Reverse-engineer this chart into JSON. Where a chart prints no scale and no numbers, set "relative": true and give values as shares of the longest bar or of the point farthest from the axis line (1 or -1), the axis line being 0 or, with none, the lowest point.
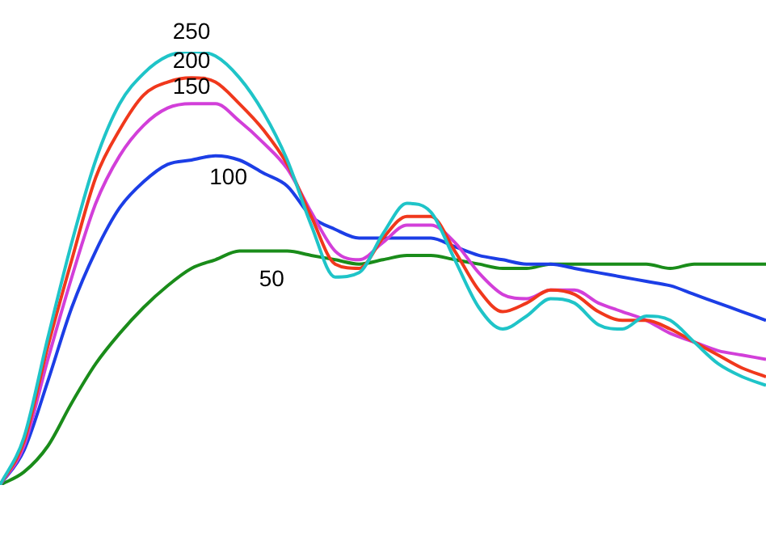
{
  "chart_data": {
    "type": "line",
    "relative": true,
    "categories": [
      null,
      null,
      null,
      null,
      null,
      null,
      null,
      null,
      null,
      null,
      null,
      null,
      null,
      null,
      null,
      null,
      null,
      null,
      null,
      null,
      null,
      null,
      null,
      null,
      null,
      null,
      null,
      null,
      null,
      null,
      null,
      null,
      null
    ],
    "marker": "none",
    "legend": false,
    "series": [
      {
        "name": "250",
        "color": "#1fc4c8",
        "values": [
          0,
          0.11,
          0.34,
          0.56,
          0.75,
          0.88,
          0.95,
          0.99,
          1,
          0.99,
          0.94,
          0.86,
          0.75,
          0.6,
          0.48,
          0.49,
          0.58,
          0.65,
          0.63,
          0.52,
          0.41,
          0.36,
          0.39,
          0.43,
          0.42,
          0.37,
          0.36,
          0.39,
          0.38,
          0.33,
          0.28,
          0.25,
          0.23
        ]
      },
      {
        "name": "200",
        "color": "#f0381c",
        "values": [
          0,
          0.1,
          0.32,
          0.52,
          0.71,
          0.82,
          0.9,
          0.93,
          0.94,
          0.93,
          0.88,
          0.82,
          0.74,
          0.62,
          0.51,
          0.5,
          0.57,
          0.62,
          0.62,
          0.54,
          0.45,
          0.4,
          0.42,
          0.45,
          0.44,
          0.4,
          0.38,
          0.38,
          0.36,
          0.33,
          0.3,
          0.27,
          0.25
        ]
      },
      {
        "name": "150",
        "color": "#d23fd9",
        "values": [
          0,
          0.09,
          0.29,
          0.48,
          0.65,
          0.76,
          0.83,
          0.87,
          0.88,
          0.88,
          0.84,
          0.79,
          0.73,
          0.63,
          0.54,
          0.52,
          0.56,
          0.6,
          0.6,
          0.56,
          0.49,
          0.44,
          0.43,
          0.45,
          0.45,
          0.42,
          0.4,
          0.38,
          0.35,
          0.33,
          0.31,
          0.3,
          0.29
        ]
      },
      {
        "name": "100",
        "color": "#1c3ee6",
        "values": [
          0,
          0.08,
          0.24,
          0.41,
          0.54,
          0.64,
          0.7,
          0.74,
          0.75,
          0.76,
          0.75,
          0.72,
          0.69,
          0.62,
          0.59,
          0.57,
          0.57,
          0.57,
          0.57,
          0.55,
          0.53,
          0.52,
          0.51,
          0.51,
          0.5,
          0.49,
          0.48,
          0.47,
          0.46,
          0.44,
          0.42,
          0.4,
          0.38
        ]
      },
      {
        "name": "50",
        "color": "#1a8c1a",
        "values": [
          0,
          0.03,
          0.09,
          0.19,
          0.28,
          0.35,
          0.41,
          0.46,
          0.5,
          0.52,
          0.54,
          0.54,
          0.54,
          0.53,
          0.52,
          0.51,
          0.52,
          0.53,
          0.53,
          0.52,
          0.51,
          0.5,
          0.5,
          0.51,
          0.51,
          0.51,
          0.51,
          0.51,
          0.5,
          0.51,
          0.51,
          0.51,
          0.51
        ]
      }
    ]
  }
}
